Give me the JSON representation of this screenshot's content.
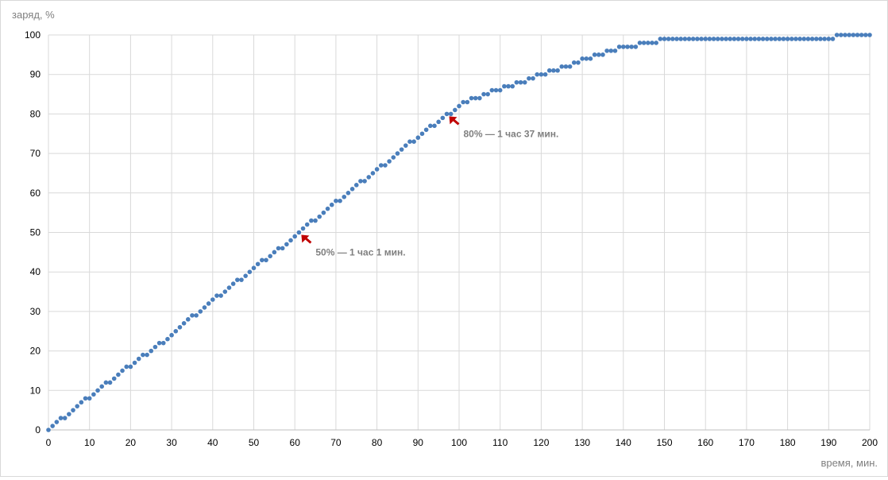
{
  "chart_data": {
    "type": "scatter",
    "title": "",
    "xlabel": "время, мин.",
    "ylabel": "заряд, %",
    "xlim": [
      0,
      200
    ],
    "ylim": [
      0,
      100
    ],
    "x_ticks": [
      "0",
      "10",
      "20",
      "30",
      "40",
      "50",
      "60",
      "70",
      "80",
      "90",
      "100",
      "110",
      "120",
      "130",
      "140",
      "150",
      "160",
      "170",
      "180",
      "190",
      "200"
    ],
    "y_ticks": [
      "0",
      "10",
      "20",
      "30",
      "40",
      "50",
      "60",
      "70",
      "80",
      "90",
      "100"
    ],
    "grid": true,
    "legend": "none",
    "marker_color": "#4a7ebb",
    "series": [
      {
        "x": [
          0,
          1,
          2,
          3,
          4,
          5,
          6,
          7,
          8,
          9,
          10,
          11,
          12,
          13,
          14,
          15,
          16,
          17,
          18,
          19,
          20,
          21,
          22,
          23,
          24,
          25,
          26,
          27,
          28,
          29,
          30,
          31,
          32,
          33,
          34,
          35,
          36,
          37,
          38,
          39,
          40,
          41,
          42,
          43,
          44,
          45,
          46,
          47,
          48,
          49,
          50,
          51,
          52,
          53,
          54,
          55,
          56,
          57,
          58,
          59,
          60,
          61,
          62,
          63,
          64,
          65,
          66,
          67,
          68,
          69,
          70,
          71,
          72,
          73,
          74,
          75,
          76,
          77,
          78,
          79,
          80,
          81,
          82,
          83,
          84,
          85,
          86,
          87,
          88,
          89,
          90,
          91,
          92,
          93,
          94,
          95,
          96,
          97,
          98,
          99,
          100,
          101,
          102,
          103,
          104,
          105,
          106,
          107,
          108,
          109,
          110,
          111,
          112,
          113,
          114,
          115,
          116,
          117,
          118,
          119,
          120,
          121,
          122,
          123,
          124,
          125,
          126,
          127,
          128,
          129,
          130,
          131,
          132,
          133,
          134,
          135,
          136,
          137,
          138,
          139,
          140,
          141,
          142,
          143,
          144,
          145,
          146,
          147,
          148,
          149,
          150,
          151,
          152,
          153,
          154,
          155,
          156,
          157,
          158,
          159,
          160,
          161,
          162,
          163,
          164,
          165,
          166,
          167,
          168,
          169,
          170,
          171,
          172,
          173,
          174,
          175,
          176,
          177,
          178,
          179,
          180,
          181,
          182,
          183,
          184,
          185,
          186,
          187,
          188,
          189,
          190,
          191,
          192,
          193,
          194,
          195,
          196,
          197,
          198,
          199,
          200
        ],
        "y": [
          0,
          1,
          2,
          3,
          3,
          4,
          5,
          6,
          7,
          8,
          8,
          9,
          10,
          11,
          12,
          12,
          13,
          14,
          15,
          16,
          16,
          17,
          18,
          19,
          19,
          20,
          21,
          22,
          22,
          23,
          24,
          25,
          26,
          27,
          28,
          29,
          29,
          30,
          31,
          32,
          33,
          34,
          34,
          35,
          36,
          37,
          38,
          38,
          39,
          40,
          41,
          42,
          43,
          43,
          44,
          45,
          46,
          46,
          47,
          48,
          49,
          50,
          51,
          52,
          53,
          53,
          54,
          55,
          56,
          57,
          58,
          58,
          59,
          60,
          61,
          62,
          63,
          63,
          64,
          65,
          66,
          67,
          67,
          68,
          69,
          70,
          71,
          72,
          73,
          73,
          74,
          75,
          76,
          77,
          77,
          78,
          79,
          80,
          80,
          81,
          82,
          83,
          83,
          84,
          84,
          84,
          85,
          85,
          86,
          86,
          86,
          87,
          87,
          87,
          88,
          88,
          88,
          89,
          89,
          90,
          90,
          90,
          91,
          91,
          91,
          92,
          92,
          92,
          93,
          93,
          94,
          94,
          94,
          95,
          95,
          95,
          96,
          96,
          96,
          97,
          97,
          97,
          97,
          97,
          98,
          98,
          98,
          98,
          98,
          99,
          99,
          99,
          99,
          99,
          99,
          99,
          99,
          99,
          99,
          99,
          99,
          99,
          99,
          99,
          99,
          99,
          99,
          99,
          99,
          99,
          99,
          99,
          99,
          99,
          99,
          99,
          99,
          99,
          99,
          99,
          99,
          99,
          99,
          99,
          99,
          99,
          99,
          99,
          99,
          99,
          99,
          99,
          100,
          100,
          100,
          100,
          100,
          100,
          100,
          100,
          100
        ]
      }
    ],
    "annotations": [
      {
        "text": "50% — 1 час 1 мин.",
        "x": 61,
        "y": 50,
        "arrow_color": "#c00000"
      },
      {
        "text": "80% — 1 час 37 мин.",
        "x": 97,
        "y": 80,
        "arrow_color": "#c00000"
      }
    ]
  }
}
